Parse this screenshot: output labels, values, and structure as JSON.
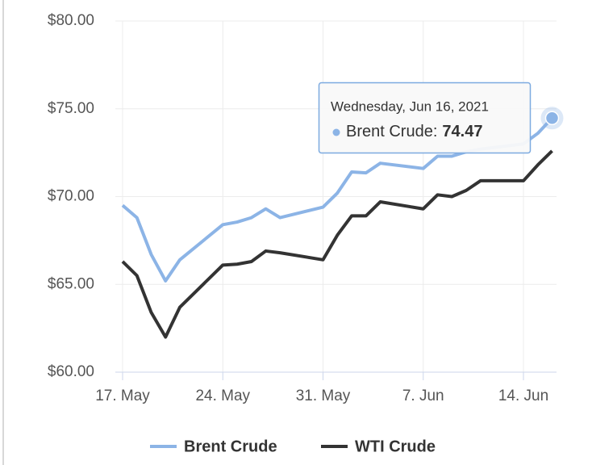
{
  "chart_data": {
    "type": "line",
    "x": [
      "2021-05-17",
      "2021-05-18",
      "2021-05-19",
      "2021-05-20",
      "2021-05-21",
      "2021-05-24",
      "2021-05-25",
      "2021-05-26",
      "2021-05-27",
      "2021-05-28",
      "2021-05-31",
      "2021-06-01",
      "2021-06-02",
      "2021-06-03",
      "2021-06-04",
      "2021-06-07",
      "2021-06-08",
      "2021-06-09",
      "2021-06-10",
      "2021-06-11",
      "2021-06-14",
      "2021-06-15",
      "2021-06-16"
    ],
    "series": [
      {
        "name": "Brent Crude",
        "color": "#8cb4e6",
        "values": [
          69.5,
          68.8,
          66.7,
          65.2,
          66.4,
          68.4,
          68.55,
          68.8,
          69.3,
          68.8,
          69.4,
          70.2,
          71.4,
          71.35,
          71.9,
          71.6,
          72.3,
          72.3,
          72.55,
          72.7,
          73.0,
          73.6,
          74.47
        ]
      },
      {
        "name": "WTI Crude",
        "color": "#333333",
        "values": [
          66.3,
          65.5,
          63.4,
          62.0,
          63.7,
          66.1,
          66.15,
          66.3,
          66.9,
          66.8,
          66.4,
          67.8,
          68.9,
          68.9,
          69.7,
          69.3,
          70.1,
          70.0,
          70.35,
          70.9,
          70.9,
          71.8,
          72.6
        ]
      }
    ],
    "xlim": [
      "2021-05-17",
      "2021-06-16"
    ],
    "xticks": [
      {
        "value": "2021-05-17",
        "label": "17. May"
      },
      {
        "value": "2021-05-24",
        "label": "24. May"
      },
      {
        "value": "2021-05-31",
        "label": "31. May"
      },
      {
        "value": "2021-06-07",
        "label": "7. Jun"
      },
      {
        "value": "2021-06-14",
        "label": "14. Jun"
      }
    ],
    "ylim": [
      60,
      80
    ],
    "yticks": [
      {
        "value": 60,
        "label": "$60.00"
      },
      {
        "value": 65,
        "label": "$65.00"
      },
      {
        "value": 70,
        "label": "$70.00"
      },
      {
        "value": 75,
        "label": "$75.00"
      },
      {
        "value": 80,
        "label": "$80.00"
      }
    ],
    "grid": true,
    "legend": "bottom",
    "tooltip": {
      "header": "Wednesday, Jun 16, 2021",
      "series": 0,
      "index": 22,
      "separator": ":"
    }
  }
}
